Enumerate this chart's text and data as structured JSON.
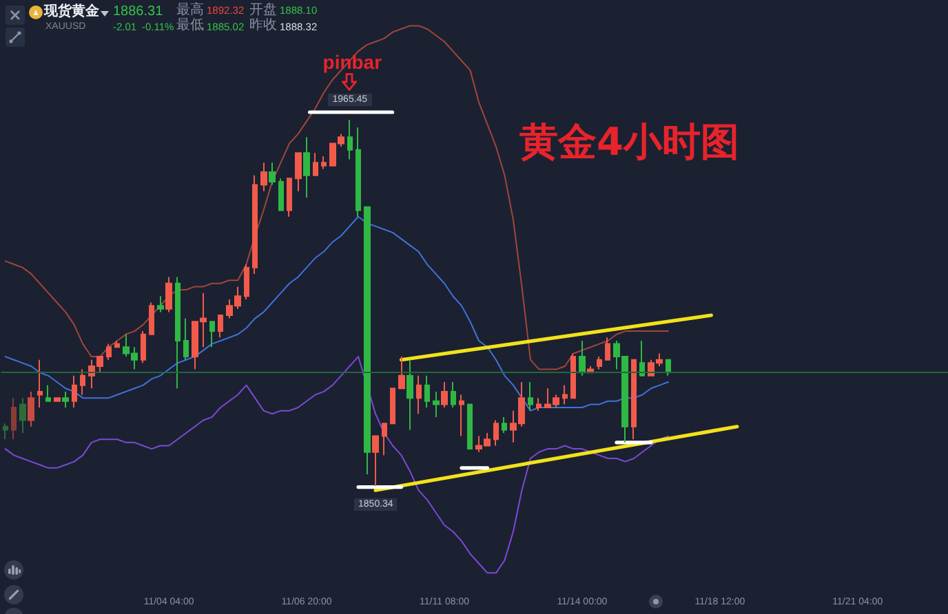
{
  "chart_data": {
    "type": "candlestick",
    "title": "黄金4小时图",
    "subtitle": "现货黄金",
    "annotations": [
      "XAUUSD",
      "1886.31",
      "-2.01",
      "-0.11%",
      "最高",
      "1892.32",
      "开盘",
      "1888.10",
      "最低",
      "1885.02",
      "昨收",
      "1888.32",
      "pinbar",
      {
        "text": "1965.45",
        "y": 1965.45
      },
      {
        "text": "1850.34",
        "y": 1850.34
      }
    ],
    "categories": [
      null,
      null,
      null,
      null,
      null,
      null,
      null,
      null,
      null,
      null,
      null,
      null,
      null,
      null,
      null,
      null,
      null,
      null,
      null,
      "11/04 04:00",
      null,
      null,
      null,
      null,
      null,
      null,
      null,
      null,
      null,
      null,
      null,
      null,
      null,
      null,
      null,
      "11/06 20:00",
      null,
      null,
      null,
      null,
      null,
      null,
      null,
      null,
      null,
      null,
      null,
      null,
      null,
      null,
      null,
      "11/11 08:00",
      null,
      null,
      null,
      null,
      null,
      null,
      null,
      null,
      null,
      null,
      null,
      null,
      null,
      null,
      null,
      "11/14 00:00",
      null,
      null,
      null,
      null,
      null,
      null,
      null,
      null,
      null,
      null,
      null,
      null,
      null,
      null,
      null,
      "11/18 12:00",
      null,
      null,
      null,
      null,
      null,
      null,
      null,
      null,
      null,
      null,
      null,
      null,
      null,
      null,
      null,
      "11/21 04:00",
      null,
      null,
      null,
      null,
      null,
      null,
      null,
      null,
      null,
      null
    ],
    "ohlc": [
      [
        1869,
        1870,
        1865,
        1868
      ],
      [
        1868,
        1878,
        1865,
        1875
      ],
      [
        1876,
        1878,
        1867,
        1871
      ],
      [
        1871,
        1880,
        1869,
        1878
      ],
      [
        1879,
        1890,
        1875,
        1880
      ],
      [
        1878,
        1882,
        1877,
        1877
      ],
      [
        1877,
        1878,
        1877,
        1878
      ],
      [
        1878,
        1880,
        1875,
        1877
      ],
      [
        1877,
        1885,
        1875,
        1882
      ],
      [
        1882,
        1887,
        1879,
        1885
      ],
      [
        1885,
        1890,
        1881,
        1888
      ],
      [
        1888,
        1891,
        1886,
        1891
      ],
      [
        1891,
        1895,
        1890,
        1894
      ],
      [
        1894,
        1896,
        1894,
        1895
      ],
      [
        1894,
        1898,
        1891,
        1892
      ],
      [
        1892,
        1894,
        1887,
        1890
      ],
      [
        1890,
        1899,
        1889,
        1898
      ],
      [
        1898,
        1908,
        1898,
        1907
      ],
      [
        1907,
        1910,
        1905,
        1906
      ],
      [
        1906,
        1916,
        1905,
        1914
      ],
      [
        1914,
        1916,
        1881,
        1896
      ],
      [
        1896,
        1903,
        1890,
        1891
      ],
      [
        1891,
        1902,
        1887,
        1902
      ],
      [
        1902,
        1911,
        1894,
        1903
      ],
      [
        1902,
        1902,
        1894,
        1899
      ],
      [
        1899,
        1904,
        1897,
        1904
      ],
      [
        1904,
        1909,
        1903,
        1907
      ],
      [
        1907,
        1913,
        1906,
        1910
      ],
      [
        1910,
        1920,
        1909,
        1919
      ],
      [
        1919,
        1948,
        1917,
        1945
      ],
      [
        1945,
        1952,
        1943,
        1949
      ],
      [
        1949,
        1952,
        1945,
        1946
      ],
      [
        1946,
        1947,
        1937,
        1937
      ],
      [
        1937,
        1947,
        1935,
        1947
      ],
      [
        1947,
        1955,
        1943,
        1955
      ],
      [
        1955,
        1960,
        1941,
        1948
      ],
      [
        1948,
        1955,
        1948,
        1952
      ],
      [
        1951,
        1954,
        1950,
        1952
      ],
      [
        1951,
        1958,
        1951,
        1958
      ],
      [
        1958,
        1961,
        1957,
        1960
      ],
      [
        1960,
        1965.45,
        1953,
        1956
      ],
      [
        1956,
        1963,
        1935,
        1937
      ],
      [
        1938,
        1938,
        1854,
        1861
      ],
      [
        1861,
        1866,
        1850.34,
        1866
      ],
      [
        1866,
        1870,
        1860,
        1870
      ],
      [
        1870,
        1881,
        1870,
        1881
      ],
      [
        1881,
        1891,
        1881,
        1885
      ],
      [
        1885,
        1890,
        1868,
        1878
      ],
      [
        1878,
        1885,
        1873,
        1882
      ],
      [
        1882,
        1885,
        1875,
        1877
      ],
      [
        1877,
        1880,
        1872,
        1876
      ],
      [
        1876,
        1883,
        1875,
        1880
      ],
      [
        1880,
        1883,
        1875,
        1876
      ],
      [
        1876,
        1879,
        1866,
        1877
      ],
      [
        1876,
        1876,
        1862,
        1862
      ],
      [
        1862,
        1866,
        1861,
        1863
      ],
      [
        1863,
        1867,
        1863,
        1865
      ],
      [
        1865,
        1871,
        1863,
        1870
      ],
      [
        1870,
        1872,
        1867,
        1868
      ],
      [
        1868,
        1874,
        1864,
        1870
      ],
      [
        1870,
        1883,
        1869,
        1878
      ],
      [
        1878,
        1883,
        1874,
        1876
      ],
      [
        1875,
        1878,
        1874,
        1876
      ],
      [
        1875,
        1881,
        1875,
        1876
      ],
      [
        1876,
        1879,
        1875,
        1878
      ],
      [
        1878,
        1882,
        1876,
        1879
      ],
      [
        1878,
        1892,
        1878,
        1891
      ],
      [
        1891,
        1896,
        1885,
        1886
      ],
      [
        1886,
        1888,
        1886,
        1887
      ],
      [
        1888,
        1891,
        1887,
        1890
      ],
      [
        1890,
        1897,
        1890,
        1895
      ],
      [
        1895,
        1896,
        1887,
        1891
      ],
      [
        1891,
        1891,
        1864,
        1869
      ],
      [
        1869,
        1890,
        1865,
        1890
      ],
      [
        1889,
        1896,
        1885,
        1885
      ],
      [
        1885,
        1890,
        1885,
        1889
      ],
      [
        1889,
        1892,
        1888,
        1890
      ],
      [
        1890,
        1890,
        1885,
        1886
      ],
      null,
      null,
      null,
      null,
      null,
      null,
      null,
      null,
      null,
      null,
      null,
      null,
      null,
      null,
      null,
      null,
      null,
      null,
      null,
      null,
      null,
      null,
      null,
      null,
      null,
      null,
      null,
      null,
      null,
      null,
      null,
      null
    ],
    "colors": [
      "#2f6b3b",
      "#8a3b37",
      "#2f6b3b",
      "#c74c42",
      "#f25b4b",
      "#30b845",
      "#f25b4b",
      "#30b845",
      "#f25b4b",
      "#f25b4b",
      "#f25b4b",
      "#f25b4b",
      "#f25b4b",
      "#f25b4b",
      "#30b845",
      "#30b845",
      "#f25b4b",
      "#f25b4b",
      "#30b845",
      "#f25b4b",
      "#30b845",
      "#30b845",
      "#f25b4b",
      "#f25b4b",
      "#30b845",
      "#f25b4b",
      "#f25b4b",
      "#f25b4b",
      "#f25b4b",
      "#f25b4b",
      "#f25b4b",
      "#30b845",
      "#30b845",
      "#f25b4b",
      "#f25b4b",
      "#30b845",
      "#f25b4b",
      "#f25b4b",
      "#f25b4b",
      "#f25b4b",
      "#30b845",
      "#30b845",
      "#30b845",
      "#f25b4b",
      "#f25b4b",
      "#f25b4b",
      "#f25b4b",
      "#30b845",
      "#f25b4b",
      "#30b845",
      "#30b845",
      "#f25b4b",
      "#30b845",
      "#f25b4b",
      "#30b845",
      "#f25b4b",
      "#f25b4b",
      "#f25b4b",
      "#30b845",
      "#f25b4b",
      "#f25b4b",
      "#30b845",
      "#f25b4b",
      "#f25b4b",
      "#f25b4b",
      "#f25b4b",
      "#f25b4b",
      "#30b845",
      "#f25b4b",
      "#f25b4b",
      "#f25b4b",
      "#30b845",
      "#30b845",
      "#f25b4b",
      "#30b845",
      "#f25b4b",
      "#f25b4b",
      "#30b845",
      null,
      null,
      null,
      null,
      null,
      null,
      null,
      null,
      null,
      null,
      null,
      null,
      null,
      null,
      null,
      null,
      null,
      null,
      null,
      null,
      null,
      null,
      null,
      null,
      null,
      null,
      null,
      null,
      null,
      null,
      null,
      null
    ],
    "series": [
      {
        "type": "line",
        "color": "#a2453c",
        "values": [
          1921,
          1920,
          1919,
          1917,
          1914,
          1911,
          1908,
          1905,
          1901,
          1895,
          1891,
          1891,
          1894,
          1896,
          1898,
          1899,
          1901,
          1904,
          1907,
          1910,
          1912,
          1912,
          1913,
          1913,
          1914,
          1914,
          1915,
          1915,
          1920,
          1929,
          1937,
          1946,
          1952,
          1958,
          1961,
          1965,
          1969,
          1974,
          1978,
          1981,
          1984,
          1987,
          1989,
          1990,
          1991,
          1993,
          1994,
          1995,
          1995,
          1994,
          1992,
          1990,
          1987,
          1984,
          1981,
          1971,
          1964,
          1957,
          1948,
          1934,
          1913,
          1890,
          1887,
          1887,
          1887,
          1888,
          1892,
          1893,
          1894,
          1895,
          1896,
          1898,
          1899,
          1899,
          1899,
          1899,
          1899,
          1899,
          null,
          null,
          null,
          null,
          null,
          null,
          null,
          null,
          null,
          null,
          null,
          null,
          null,
          null,
          null,
          null,
          null,
          null,
          null,
          null,
          null,
          null,
          null,
          null,
          null,
          null,
          null,
          null,
          null,
          null,
          null,
          null
        ]
      },
      {
        "type": "line",
        "color": "#3f72dc",
        "values": [
          1891,
          1890,
          1889,
          1888,
          1886,
          1885,
          1883,
          1881,
          1880,
          1878,
          1878,
          1878,
          1878,
          1879,
          1880,
          1881,
          1882,
          1884,
          1885,
          1887,
          1889,
          1890,
          1891,
          1893,
          1895,
          1896,
          1897,
          1898,
          1900,
          1903,
          1905,
          1908,
          1911,
          1914,
          1916,
          1919,
          1922,
          1924,
          1927,
          1929,
          1932,
          1935,
          1933,
          1932,
          1931,
          1930,
          1928,
          1926,
          1924,
          1920,
          1917,
          1914,
          1910,
          1907,
          1902,
          1896,
          1894,
          1890,
          1885,
          1882,
          1878,
          1874,
          1875,
          1875,
          1875,
          1875,
          1875,
          1875,
          1876,
          1876,
          1877,
          1877,
          1878,
          1878,
          1879,
          1881,
          1882,
          1883,
          null,
          null,
          null,
          null,
          null,
          null,
          null,
          null,
          null,
          null,
          null,
          null,
          null,
          null,
          null,
          null,
          null,
          null,
          null,
          null,
          null,
          null,
          null,
          null,
          null,
          null,
          null,
          null,
          null,
          null,
          null,
          null
        ]
      },
      {
        "type": "line",
        "color": "#7d48d8",
        "values": [
          1862,
          1860,
          1859,
          1858,
          1857,
          1856,
          1856,
          1857,
          1858,
          1860,
          1864,
          1865,
          1865,
          1865,
          1864,
          1864,
          1863,
          1862,
          1863,
          1863,
          1865,
          1867,
          1869,
          1871,
          1872,
          1875,
          1877,
          1879,
          1882,
          1878,
          1874,
          1873,
          1874,
          1874,
          1875,
          1877,
          1879,
          1880,
          1882,
          1885,
          1888,
          1891,
          null,
          1873,
          1867,
          1863,
          1860,
          1855,
          1849,
          1846,
          1842,
          1838,
          1836,
          1833,
          1829,
          1826,
          1823,
          1823,
          1827,
          1836,
          1849,
          1859,
          1861,
          1862,
          1862,
          1863,
          1862,
          1862,
          1861,
          1860,
          1859,
          1859,
          1858,
          1859,
          1861,
          1863,
          1865,
          1866,
          null,
          null,
          null,
          null,
          null,
          null,
          null,
          null,
          null,
          null,
          null,
          null,
          null,
          null,
          null,
          null,
          null,
          null,
          null,
          null,
          null,
          null,
          null,
          null,
          null,
          null,
          null,
          null,
          null,
          null,
          null,
          null
        ]
      },
      {
        "type": "line",
        "color": "#f2e21b",
        "values": [
          null,
          null,
          null,
          null,
          null,
          null,
          null,
          null,
          null,
          null,
          null,
          null,
          null,
          null,
          null,
          null,
          null,
          null,
          null,
          null,
          null,
          null,
          null,
          null,
          null,
          null,
          null,
          null,
          null,
          null,
          null,
          null,
          null,
          null,
          null,
          null,
          null,
          null,
          null,
          null,
          null,
          null,
          null,
          null,
          null,
          null,
          1890,
          null,
          null,
          null,
          null,
          null,
          null,
          null,
          null,
          null,
          null,
          null,
          null,
          null,
          null,
          null,
          null,
          null,
          null,
          null,
          null,
          null,
          null,
          null,
          null,
          null,
          null,
          null,
          null,
          null,
          null,
          null,
          null,
          null,
          null,
          null,
          1904,
          null,
          null,
          null,
          null,
          null,
          null,
          null,
          null,
          null,
          null,
          null,
          null,
          null,
          null,
          null,
          null,
          null,
          null,
          null,
          null,
          null,
          null,
          null,
          null,
          null,
          null,
          null
        ]
      },
      {
        "type": "line",
        "color": "#f2e21b",
        "values": [
          null,
          null,
          null,
          null,
          null,
          null,
          null,
          null,
          null,
          null,
          null,
          null,
          null,
          null,
          null,
          null,
          null,
          null,
          null,
          null,
          null,
          null,
          null,
          null,
          null,
          null,
          null,
          null,
          null,
          null,
          null,
          null,
          null,
          null,
          null,
          null,
          null,
          null,
          null,
          null,
          null,
          null,
          null,
          1849,
          null,
          null,
          null,
          null,
          null,
          null,
          null,
          null,
          null,
          null,
          null,
          null,
          null,
          null,
          null,
          null,
          null,
          null,
          null,
          null,
          null,
          null,
          null,
          null,
          null,
          null,
          null,
          null,
          null,
          null,
          null,
          null,
          null,
          null,
          null,
          null,
          null,
          null,
          null,
          null,
          null,
          1869,
          null,
          null,
          null,
          null,
          null,
          null,
          null,
          null,
          null,
          null,
          null,
          null,
          null,
          null,
          null,
          null,
          null,
          null,
          null,
          null,
          null,
          null,
          null,
          null
        ]
      },
      {
        "type": "line",
        "color": "#ffffff",
        "values": [
          null,
          null,
          null,
          null,
          null,
          null,
          null,
          null,
          null,
          null,
          null,
          null,
          null,
          null,
          null,
          null,
          null,
          null,
          null,
          null,
          null,
          null,
          null,
          null,
          null,
          null,
          null,
          null,
          null,
          null,
          null,
          null,
          null,
          null,
          null,
          null,
          null,
          null,
          null,
          null,
          null,
          1850,
          null,
          null,
          null,
          null,
          1850,
          null,
          null,
          null,
          null,
          null,
          null,
          null,
          null,
          null,
          null,
          null,
          null,
          null,
          null,
          null,
          null,
          null,
          null,
          null,
          null,
          null,
          null,
          null,
          null,
          null,
          null,
          null,
          null,
          null,
          null,
          null,
          null,
          null,
          null,
          null,
          null,
          null,
          null,
          null,
          null,
          null,
          null,
          null,
          null,
          null,
          null,
          null,
          null,
          null,
          null,
          null,
          null,
          null,
          null,
          null,
          null,
          null,
          null,
          null,
          null,
          null,
          null,
          null
        ]
      },
      {
        "type": "line",
        "color": "#ffffff",
        "values": [
          null,
          null,
          null,
          null,
          null,
          null,
          null,
          null,
          null,
          null,
          null,
          null,
          null,
          null,
          null,
          null,
          null,
          null,
          null,
          null,
          null,
          null,
          null,
          null,
          null,
          null,
          null,
          null,
          null,
          null,
          null,
          null,
          null,
          null,
          null,
          null,
          null,
          null,
          null,
          null,
          null,
          null,
          null,
          null,
          null,
          null,
          null,
          null,
          null,
          null,
          null,
          null,
          null,
          1856,
          null,
          null,
          1856,
          null,
          null,
          null,
          null,
          null,
          null,
          null,
          null,
          null,
          null,
          null,
          null,
          null,
          null,
          null,
          null,
          null,
          null,
          null,
          null,
          null,
          null,
          null,
          null,
          null,
          null,
          null,
          null,
          null,
          null,
          null,
          null,
          null,
          null,
          null,
          null,
          null,
          null,
          null,
          null,
          null,
          null,
          null,
          null,
          null,
          null,
          null,
          null,
          null,
          null,
          null,
          null,
          null
        ]
      },
      {
        "type": "line",
        "color": "#ffffff",
        "values": [
          null,
          null,
          null,
          null,
          null,
          null,
          null,
          null,
          null,
          null,
          null,
          null,
          null,
          null,
          null,
          null,
          null,
          null,
          null,
          null,
          null,
          null,
          null,
          null,
          null,
          null,
          null,
          null,
          null,
          null,
          null,
          null,
          null,
          null,
          null,
          null,
          null,
          null,
          null,
          null,
          null,
          null,
          null,
          null,
          null,
          null,
          null,
          null,
          null,
          null,
          null,
          null,
          null,
          null,
          null,
          null,
          null,
          null,
          null,
          null,
          null,
          null,
          null,
          null,
          null,
          null,
          null,
          null,
          null,
          null,
          null,
          1864,
          null,
          null,
          null,
          1864,
          null,
          null,
          null,
          null,
          null,
          null,
          null,
          null,
          null,
          null,
          null,
          null,
          null,
          null,
          null,
          null,
          null,
          null,
          null,
          null,
          null,
          null,
          null,
          null,
          null,
          null,
          null,
          null,
          null,
          null,
          null,
          null,
          null,
          null
        ]
      }
    ],
    "ref_lines": [
      {
        "axis": "y",
        "value": 1886.31,
        "color": "#22673a"
      }
    ],
    "marker": "none",
    "line_style": "solid",
    "tick_labels": "x"
  }
}
